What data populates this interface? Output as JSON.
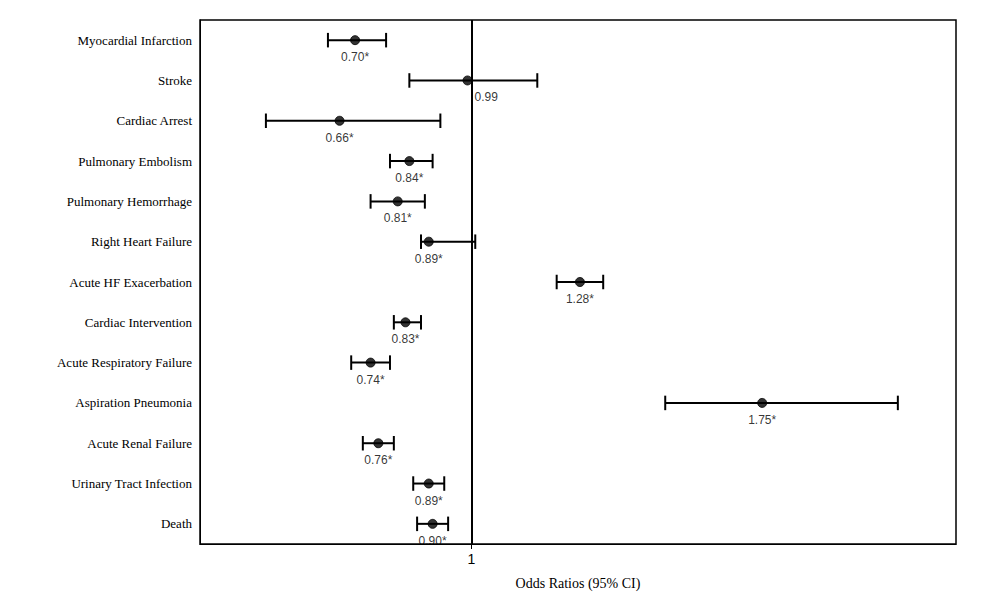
{
  "chart_data": {
    "type": "forest",
    "categories": [
      "Myocardial Infarction",
      "Stroke",
      "Cardiac Arrest",
      "Pulmonary Embolism",
      "Pulmonary Hemorrhage",
      "Right Heart Failure",
      "Acute HF Exacerbation",
      "Cardiac Intervention",
      "Acute Respiratory Failure",
      "Aspiration Pneumonia",
      "Acute Renal Failure",
      "Urinary Tract Infection",
      "Death"
    ],
    "values": [
      0.7,
      0.99,
      0.66,
      0.84,
      0.81,
      0.89,
      1.28,
      0.83,
      0.74,
      1.75,
      0.76,
      0.89,
      0.9
    ],
    "value_labels": [
      "0.70*",
      "0.99",
      "0.66*",
      "0.84*",
      "0.81*",
      "0.89*",
      "1.28*",
      "0.83*",
      "0.74*",
      "1.75*",
      "0.76*",
      "0.89*",
      "0.90*"
    ],
    "ci_low": [
      0.63,
      0.84,
      0.47,
      0.79,
      0.74,
      0.87,
      1.22,
      0.8,
      0.69,
      1.5,
      0.72,
      0.85,
      0.86
    ],
    "ci_high": [
      0.78,
      1.17,
      0.92,
      0.9,
      0.88,
      1.01,
      1.34,
      0.87,
      0.79,
      2.1,
      0.8,
      0.93,
      0.94
    ],
    "ref_line": 1,
    "xlabel": "Odds Ratios (95% CI)",
    "xlim": [
      0.3,
      2.25
    ],
    "xticks": [
      1
    ],
    "color": "#000000",
    "data_labels": true,
    "grid": false
  }
}
